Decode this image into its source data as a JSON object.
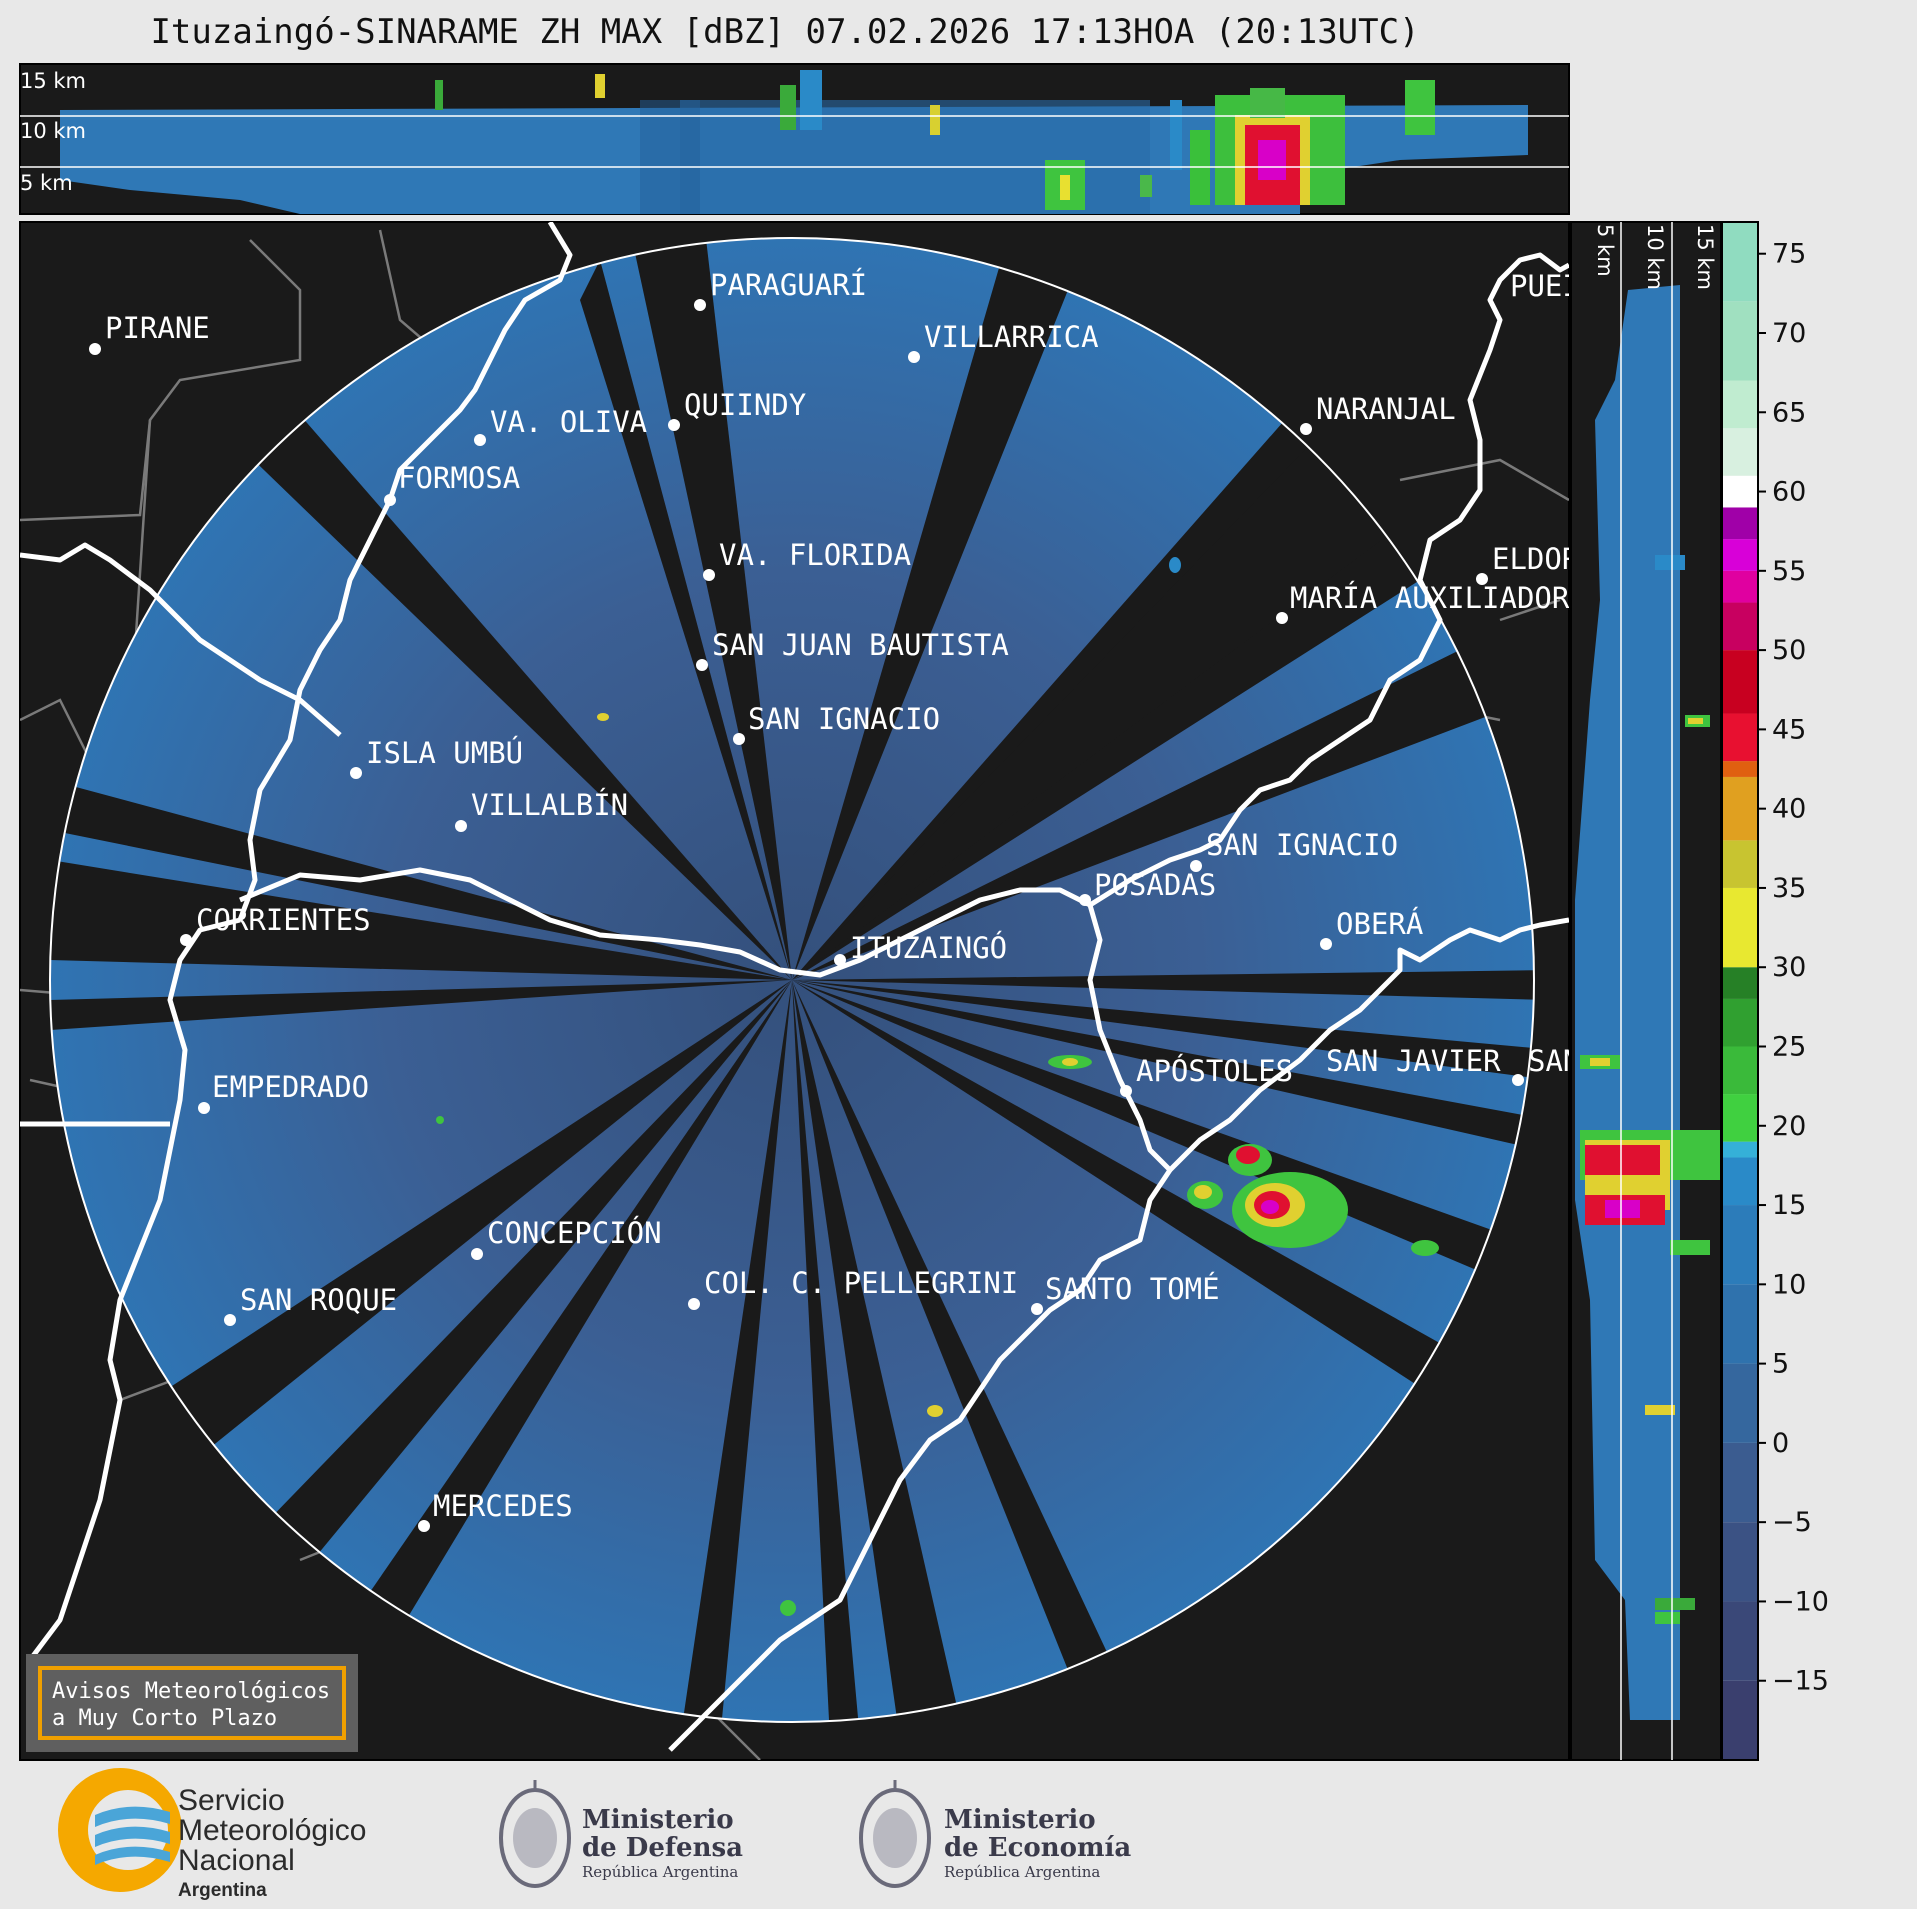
{
  "title": "Ituzaingó-SINARAME ZH MAX [dBZ] 07.02.2026 17:13HOA (20:13UTC)",
  "top_panel": {
    "height_labels": [
      "15 km",
      "10 km",
      "5 km"
    ]
  },
  "side_panel": {
    "height_labels": [
      "5 km",
      "10 km",
      "15 km"
    ]
  },
  "colorbar": {
    "ticks": [
      "75",
      "70",
      "65",
      "60",
      "55",
      "50",
      "45",
      "40",
      "35",
      "30",
      "25",
      "20",
      "15",
      "10",
      "5",
      "0",
      "−5",
      "−10",
      "−15"
    ],
    "min": -20,
    "max": 77
  },
  "cities": [
    {
      "name": "PIRANE",
      "lat_label": "PIRANE"
    },
    {
      "name": "PARAGUARÍ"
    },
    {
      "name": "VILLARRICA"
    },
    {
      "name": "QUIINDY"
    },
    {
      "name": "VA. OLIVA"
    },
    {
      "name": "NARANJAL"
    },
    {
      "name": "FORMOSA"
    },
    {
      "name": "VA. FLORIDA"
    },
    {
      "name": "ELDOR"
    },
    {
      "name": "MARÍA AUXILIADOR"
    },
    {
      "name": "SAN JUAN BAUTISTA"
    },
    {
      "name": "SAN IGNACIO"
    },
    {
      "name": "ISLA UMBÚ"
    },
    {
      "name": "VILLALBÍN"
    },
    {
      "name": "SAN IGNACIO"
    },
    {
      "name": "POSADAS"
    },
    {
      "name": "CORRIENTES"
    },
    {
      "name": "ITUZAINGÓ"
    },
    {
      "name": "OBERÁ"
    },
    {
      "name": "APÓSTOLES"
    },
    {
      "name": "SAN JAVIER"
    },
    {
      "name": "SAN"
    },
    {
      "name": "EMPEDRADO"
    },
    {
      "name": "CONCEPCIÓN"
    },
    {
      "name": "COL. C. PELLEGRINI"
    },
    {
      "name": "SANTO TOMÉ"
    },
    {
      "name": "SAN ROQUE"
    },
    {
      "name": "MERCEDES"
    },
    {
      "name": "PUEI"
    }
  ],
  "warning": {
    "line1": "Avisos Meteorológicos",
    "line2": "a Muy Corto Plazo"
  },
  "logos": {
    "smn": {
      "line1": "Servicio",
      "line2": "Meteorológico",
      "line3": "Nacional",
      "line4": "Argentina"
    },
    "defensa": {
      "line1": "Ministerio",
      "line2": "de Defensa",
      "line3": "República Argentina"
    },
    "economia": {
      "line1": "Ministerio",
      "line2": "de Economía",
      "line3": "República Argentina"
    }
  },
  "colors": {
    "background": "#1a1a1a",
    "echo": "#2e6fae",
    "echo_dark": "#3a5a8c",
    "border_line": "#ffffff",
    "province_line": "#888888"
  }
}
